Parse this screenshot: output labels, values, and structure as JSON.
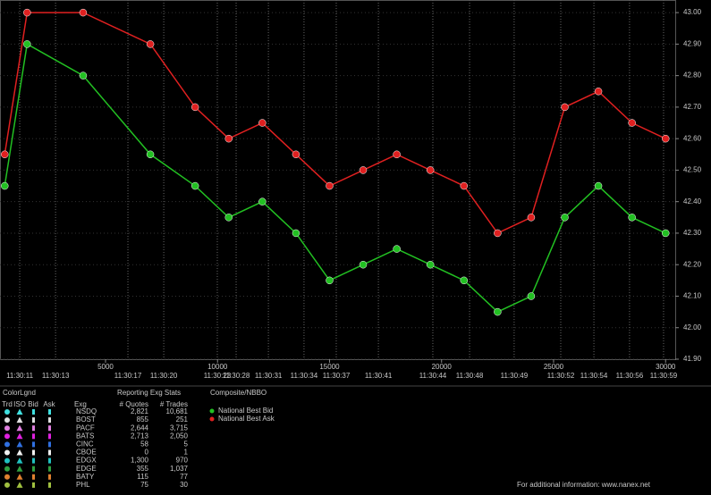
{
  "chart_data": {
    "type": "line",
    "xlim": [
      290,
      30430
    ],
    "xticks": [
      5000,
      10000,
      15000,
      20000,
      25000,
      30000
    ],
    "time_ticks": [
      {
        "value": 1170,
        "label": "11:30:11"
      },
      {
        "value": 2770,
        "label": "11:30:13"
      },
      {
        "value": 6000,
        "label": "11:30:17"
      },
      {
        "value": 7600,
        "label": "11:30:20"
      },
      {
        "value": 9990,
        "label": "11:30:23"
      },
      {
        "value": 10830,
        "label": "11:30:28"
      },
      {
        "value": 12270,
        "label": "11:30:31"
      },
      {
        "value": 13860,
        "label": "11:30:34"
      },
      {
        "value": 15300,
        "label": "11:30:37"
      },
      {
        "value": 17180,
        "label": "11:30:41"
      },
      {
        "value": 19610,
        "label": "11:30:44"
      },
      {
        "value": 21250,
        "label": "11:30:48"
      },
      {
        "value": 23240,
        "label": "11:30:49"
      },
      {
        "value": 25320,
        "label": "11:30:52"
      },
      {
        "value": 26800,
        "label": "11:30:54"
      },
      {
        "value": 28390,
        "label": "11:30:56"
      },
      {
        "value": 29910,
        "label": "11:30:59"
      }
    ],
    "ylim": [
      41.9,
      43.04
    ],
    "yticks": [
      {
        "value": 41.9,
        "label": "41.90"
      },
      {
        "value": 42.0,
        "label": "42.00"
      },
      {
        "value": 42.1,
        "label": "42.10"
      },
      {
        "value": 42.2,
        "label": "42.20"
      },
      {
        "value": 42.3,
        "label": "42.30"
      },
      {
        "value": 42.4,
        "label": "42.40"
      },
      {
        "value": 42.5,
        "label": "42.50"
      },
      {
        "value": 42.6,
        "label": "42.60"
      },
      {
        "value": 42.7,
        "label": "42.70"
      },
      {
        "value": 42.8,
        "label": "42.80"
      },
      {
        "value": 42.9,
        "label": "42.90"
      },
      {
        "value": 43.0,
        "label": "43.00"
      }
    ],
    "grid": true,
    "series": [
      {
        "name": "National Best Bid",
        "color": "#22c022",
        "x": [
          500,
          1500,
          4000,
          7000,
          9000,
          10500,
          12000,
          13500,
          15000,
          16500,
          18000,
          19500,
          21000,
          22500,
          24000,
          25500,
          27000,
          28500,
          30000
        ],
        "values": [
          42.45,
          42.9,
          42.8,
          42.55,
          42.45,
          42.35,
          42.4,
          42.3,
          42.15,
          42.2,
          42.25,
          42.2,
          42.15,
          42.05,
          42.1,
          42.35,
          42.45,
          42.35,
          42.3
        ]
      },
      {
        "name": "National Best Ask",
        "color": "#e02020",
        "x": [
          500,
          1500,
          4000,
          7000,
          9000,
          10500,
          12000,
          13500,
          15000,
          16500,
          18000,
          19500,
          21000,
          22500,
          24000,
          25500,
          27000,
          28500,
          30000
        ],
        "values": [
          42.55,
          43.0,
          43.0,
          42.9,
          42.7,
          42.6,
          42.65,
          42.55,
          42.45,
          42.5,
          42.55,
          42.5,
          42.45,
          42.3,
          42.35,
          42.7,
          42.75,
          42.65,
          42.6
        ]
      }
    ]
  },
  "legend_panel": {
    "title": "ColorLgnd",
    "columns": [
      "Trd",
      "ISO",
      "Bid",
      "Ask"
    ],
    "exchange_header": "Exg",
    "stats_title": "Reporting Exg Stats",
    "stats_columns": [
      "# Quotes",
      "# Trades"
    ],
    "composite_title": "Composite/NBBO",
    "rows": [
      {
        "exchange": "NSDQ",
        "color": "#40e0e0",
        "quotes": {
          "value": 2821,
          "label": "2,821"
        },
        "trades": {
          "value": 10681,
          "label": "10,681"
        }
      },
      {
        "exchange": "BOST",
        "color": "#e0e0e0",
        "quotes": 855,
        "trades": 251
      },
      {
        "exchange": "PACF",
        "color": "#e080e0",
        "quotes": {
          "value": 2644,
          "label": "2,644"
        },
        "trades": {
          "value": 3715,
          "label": "3,715"
        }
      },
      {
        "exchange": "BATS",
        "color": "#e020e0",
        "quotes": {
          "value": 2713,
          "label": "2,713"
        },
        "trades": {
          "value": 2050,
          "label": "2,050"
        }
      },
      {
        "exchange": "CINC",
        "color": "#3070e0",
        "quotes": 58,
        "trades": 5
      },
      {
        "exchange": "CBOE",
        "color": "#f0f0f0",
        "quotes": 0,
        "trades": 1
      },
      {
        "exchange": "EDGX",
        "color": "#20c0c0",
        "quotes": {
          "value": 1300,
          "label": "1,300"
        },
        "trades": 970
      },
      {
        "exchange": "EDGE",
        "color": "#30a040",
        "quotes": 355,
        "trades": {
          "value": 1037,
          "label": "1,037"
        }
      },
      {
        "exchange": "BATY",
        "color": "#e08030",
        "quotes": 115,
        "trades": 77
      },
      {
        "exchange": "PHL",
        "color": "#a0c040",
        "quotes": 75,
        "trades": 30
      }
    ]
  },
  "footer": "For additional information: www.nanex.net"
}
